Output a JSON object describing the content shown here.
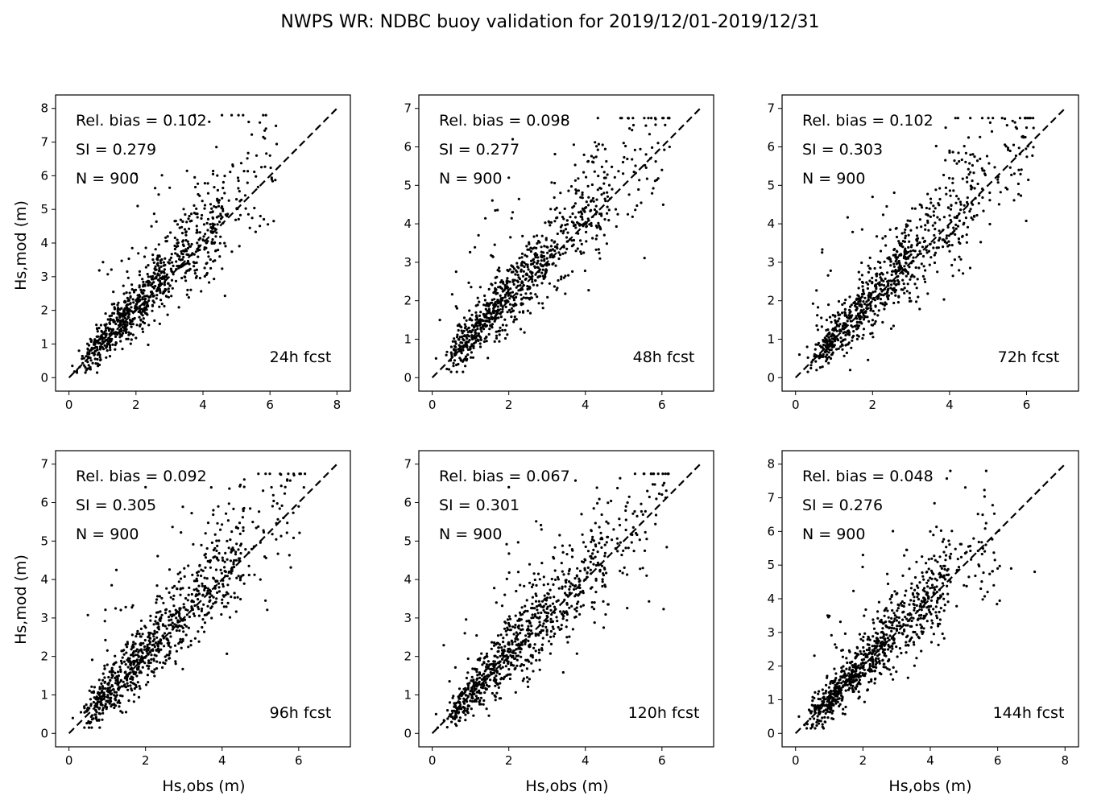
{
  "figure": {
    "title": "NWPS WR: NDBC buoy validation for 2019/12/01-2019/12/31",
    "xlabel": "Hs,obs (m)",
    "ylabel": "Hs,mod (m)"
  },
  "chart_data": [
    {
      "type": "scatter",
      "label": "24h fcst",
      "stats": [
        "Rel. bias =  0.102",
        "SI =  0.279",
        "N = 900"
      ],
      "n_points": 900,
      "xlim": [
        -0.4,
        8.4
      ],
      "ylim": [
        -0.4,
        8.4
      ],
      "xticks": [
        0,
        2,
        4,
        6,
        8
      ],
      "yticks": [
        0,
        1,
        2,
        3,
        4,
        5,
        6,
        7,
        8
      ],
      "diagonal": [
        [
          0,
          0
        ],
        [
          8,
          8
        ]
      ],
      "sample_points": [
        [
          0.1,
          0.35
        ],
        [
          0.3,
          0.8
        ],
        [
          0.6,
          0.7
        ],
        [
          0.8,
          1.1
        ],
        [
          1.0,
          0.9
        ],
        [
          1.2,
          1.4
        ],
        [
          1.5,
          1.7
        ],
        [
          1.8,
          2.0
        ],
        [
          2.0,
          6.05
        ],
        [
          2.05,
          5.1
        ],
        [
          2.2,
          2.5
        ],
        [
          2.5,
          2.7
        ],
        [
          2.8,
          3.0
        ],
        [
          3.0,
          3.4
        ],
        [
          3.3,
          3.6
        ],
        [
          3.6,
          3.9
        ],
        [
          4.0,
          4.1
        ],
        [
          4.3,
          4.5
        ],
        [
          4.5,
          3.6
        ],
        [
          5.0,
          5.3
        ],
        [
          5.4,
          4.45
        ],
        [
          5.6,
          6.6
        ],
        [
          5.8,
          7.15
        ],
        [
          6.0,
          6.6
        ]
      ]
    },
    {
      "type": "scatter",
      "label": "48h fcst",
      "stats": [
        "Rel. bias =  0.098",
        "SI =  0.277",
        "N = 900"
      ],
      "n_points": 900,
      "xlim": [
        -0.35,
        7.35
      ],
      "ylim": [
        -0.35,
        7.35
      ],
      "xticks": [
        0,
        2,
        4,
        6
      ],
      "yticks": [
        0,
        1,
        2,
        3,
        4,
        5,
        6,
        7
      ],
      "diagonal": [
        [
          0,
          0
        ],
        [
          7,
          7
        ]
      ],
      "sample_points": [
        [
          0.1,
          0.5
        ],
        [
          0.2,
          1.5
        ],
        [
          0.5,
          0.8
        ],
        [
          0.8,
          1.0
        ],
        [
          1.0,
          1.2
        ],
        [
          1.3,
          1.5
        ],
        [
          1.6,
          1.8
        ],
        [
          2.0,
          5.2
        ],
        [
          2.1,
          6.2
        ],
        [
          2.1,
          4.3
        ],
        [
          2.3,
          2.4
        ],
        [
          2.6,
          2.7
        ],
        [
          3.0,
          3.1
        ],
        [
          3.2,
          3.3
        ],
        [
          3.6,
          3.6
        ],
        [
          4.0,
          4.0
        ],
        [
          4.3,
          4.3
        ],
        [
          4.7,
          4.9
        ],
        [
          5.0,
          6.1
        ],
        [
          5.7,
          5.7
        ],
        [
          6.0,
          5.4
        ],
        [
          6.2,
          6.0
        ]
      ]
    },
    {
      "type": "scatter",
      "label": "72h fcst",
      "stats": [
        "Rel. bias =  0.102",
        "SI =  0.303",
        "N = 900"
      ],
      "n_points": 900,
      "xlim": [
        -0.35,
        7.35
      ],
      "ylim": [
        -0.35,
        7.35
      ],
      "xticks": [
        0,
        2,
        4,
        6
      ],
      "yticks": [
        0,
        1,
        2,
        3,
        4,
        5,
        6,
        7
      ],
      "diagonal": [
        [
          0,
          0
        ],
        [
          7,
          7
        ]
      ],
      "sample_points": [
        [
          0.1,
          0.6
        ],
        [
          0.3,
          0.8
        ],
        [
          0.6,
          0.9
        ],
        [
          1.0,
          1.1
        ],
        [
          1.3,
          1.4
        ],
        [
          1.6,
          1.8
        ],
        [
          1.9,
          2.1
        ],
        [
          2.0,
          4.7
        ],
        [
          2.3,
          2.4
        ],
        [
          2.6,
          2.8
        ],
        [
          3.0,
          3.2
        ],
        [
          3.3,
          3.4
        ],
        [
          3.6,
          3.7
        ],
        [
          4.0,
          5.9
        ],
        [
          4.2,
          4.2
        ],
        [
          4.6,
          4.5
        ],
        [
          5.1,
          6.4
        ],
        [
          5.5,
          4.9
        ],
        [
          5.8,
          5.4
        ],
        [
          6.0,
          6.5
        ],
        [
          3.9,
          6.5
        ]
      ]
    },
    {
      "type": "scatter",
      "label": "96h fcst",
      "stats": [
        "Rel. bias =  0.092",
        "SI =  0.305",
        "N = 900"
      ],
      "n_points": 900,
      "xlim": [
        -0.35,
        7.35
      ],
      "ylim": [
        -0.35,
        7.35
      ],
      "xticks": [
        0,
        2,
        4,
        6
      ],
      "yticks": [
        0,
        1,
        2,
        3,
        4,
        5,
        6,
        7
      ],
      "diagonal": [
        [
          0,
          0
        ],
        [
          7,
          7
        ]
      ],
      "sample_points": [
        [
          0.1,
          0.4
        ],
        [
          0.4,
          0.7
        ],
        [
          0.7,
          0.9
        ],
        [
          1.0,
          1.1
        ],
        [
          1.3,
          1.5
        ],
        [
          1.6,
          1.8
        ],
        [
          1.9,
          2.0
        ],
        [
          2.0,
          6.4
        ],
        [
          2.2,
          2.4
        ],
        [
          2.5,
          2.6
        ],
        [
          2.8,
          3.0
        ],
        [
          3.1,
          3.2
        ],
        [
          3.5,
          3.6
        ],
        [
          3.9,
          5.9
        ],
        [
          4.0,
          4.0
        ],
        [
          4.3,
          4.4
        ],
        [
          4.7,
          4.7
        ],
        [
          5.0,
          4.0
        ],
        [
          5.6,
          5.6
        ],
        [
          5.7,
          6.6
        ],
        [
          6.0,
          5.9
        ]
      ]
    },
    {
      "type": "scatter",
      "label": "120h fcst",
      "stats": [
        "Rel. bias =  0.067",
        "SI =  0.301",
        "N = 900"
      ],
      "n_points": 900,
      "xlim": [
        -0.35,
        7.35
      ],
      "ylim": [
        -0.35,
        7.35
      ],
      "xticks": [
        0,
        2,
        4,
        6
      ],
      "yticks": [
        0,
        1,
        2,
        3,
        4,
        5,
        6,
        7
      ],
      "diagonal": [
        [
          0,
          0
        ],
        [
          7,
          7
        ]
      ],
      "sample_points": [
        [
          0.1,
          0.5
        ],
        [
          0.4,
          0.6
        ],
        [
          0.7,
          0.9
        ],
        [
          1.0,
          1.1
        ],
        [
          1.3,
          1.4
        ],
        [
          1.6,
          1.8
        ],
        [
          1.9,
          2.0
        ],
        [
          2.0,
          6.4
        ],
        [
          2.2,
          2.5
        ],
        [
          2.5,
          2.7
        ],
        [
          2.8,
          3.0
        ],
        [
          3.1,
          3.2
        ],
        [
          3.5,
          3.6
        ],
        [
          3.9,
          5.7
        ],
        [
          4.0,
          4.0
        ],
        [
          4.4,
          4.4
        ],
        [
          4.8,
          4.8
        ],
        [
          5.1,
          6.0
        ],
        [
          5.6,
          4.1
        ],
        [
          5.5,
          4.3
        ]
      ]
    },
    {
      "type": "scatter",
      "label": "144h fcst",
      "stats": [
        "Rel. bias =  0.048",
        "SI =  0.276",
        "N = 900"
      ],
      "n_points": 900,
      "xlim": [
        -0.4,
        8.4
      ],
      "ylim": [
        -0.4,
        8.4
      ],
      "xticks": [
        0,
        2,
        4,
        6,
        8
      ],
      "yticks": [
        0,
        1,
        2,
        3,
        4,
        5,
        6,
        7,
        8
      ],
      "diagonal": [
        [
          0,
          0
        ],
        [
          8,
          8
        ]
      ],
      "sample_points": [
        [
          0.1,
          0.5
        ],
        [
          0.4,
          0.7
        ],
        [
          0.7,
          0.8
        ],
        [
          1.0,
          1.1
        ],
        [
          1.3,
          1.4
        ],
        [
          1.6,
          1.7
        ],
        [
          2.0,
          2.1
        ],
        [
          2.0,
          5.3
        ],
        [
          2.3,
          2.4
        ],
        [
          2.6,
          2.7
        ],
        [
          3.0,
          3.1
        ],
        [
          3.3,
          3.4
        ],
        [
          3.6,
          3.8
        ],
        [
          4.0,
          6.0
        ],
        [
          4.2,
          4.2
        ],
        [
          4.6,
          4.5
        ],
        [
          5.0,
          4.4
        ],
        [
          5.5,
          4.3
        ],
        [
          6.0,
          4.9
        ],
        [
          6.4,
          4.9
        ],
        [
          7.1,
          4.8
        ]
      ]
    }
  ]
}
